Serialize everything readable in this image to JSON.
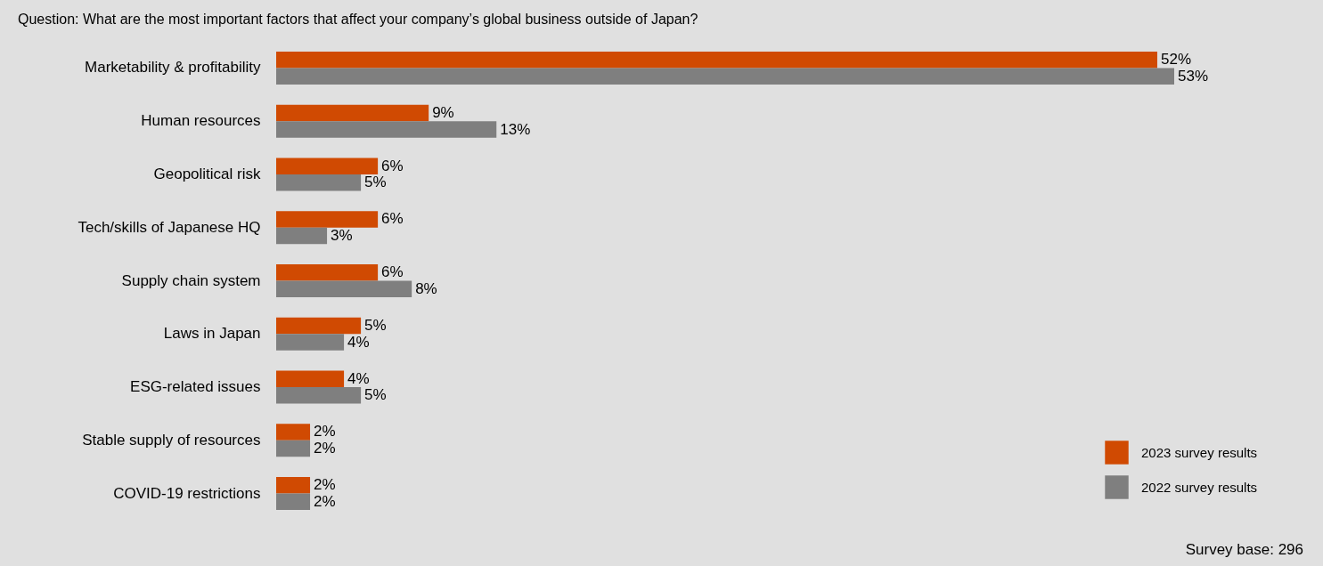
{
  "chart_data": {
    "type": "bar",
    "orientation": "horizontal",
    "title": "Question: What are the most important factors that affect your company’s global business outside of Japan?",
    "categories": [
      "Marketability & profitability",
      "Human resources",
      "Geopolitical risk",
      "Tech/skills of Japanese HQ",
      "Supply chain system",
      "Laws in Japan",
      "ESG-related issues",
      "Stable supply of resources",
      "COVID-19 restrictions"
    ],
    "series": [
      {
        "name": "2023 survey results",
        "color": "#d04a02",
        "values": [
          52,
          9,
          6,
          6,
          6,
          5,
          4,
          2,
          2
        ],
        "value_labels": [
          "52%",
          "9%",
          "6%",
          "6%",
          "6%",
          "5%",
          "4%",
          "2%",
          "2%"
        ]
      },
      {
        "name": "2022 survey results",
        "color": "#7f7f7f",
        "values": [
          53,
          13,
          5,
          3,
          8,
          4,
          5,
          2,
          2
        ],
        "value_labels": [
          "53%",
          "13%",
          "5%",
          "3%",
          "8%",
          "4%",
          "5%",
          "2%",
          "2%"
        ]
      }
    ],
    "legend": "bottom right",
    "annotations": [
      "Survey base: 296"
    ]
  }
}
